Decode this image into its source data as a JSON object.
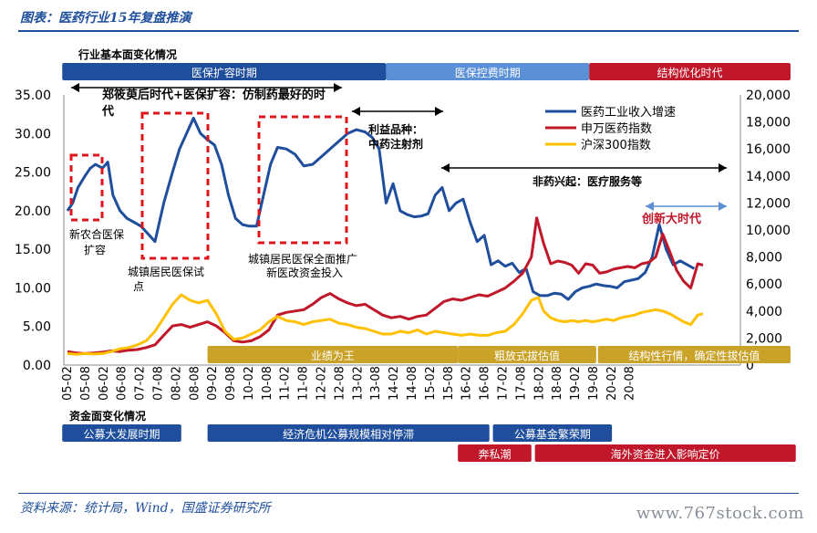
{
  "header": {
    "title": "图表：医药行业15年复盘推演"
  },
  "footer": {
    "source": "资料来源：统计局，Wind，国盛证券研究所",
    "watermark": "www.767stock.com"
  },
  "colors": {
    "blue": "#1f4e9c",
    "red": "#c0182a",
    "yellow": "#ffc000",
    "gold": "#c9a227",
    "lightblue": "#5b8fd6",
    "darkred": "#c0182a"
  },
  "chart_data": {
    "type": "line",
    "x": [
      "05-02",
      "05-08",
      "06-02",
      "06-08",
      "07-02",
      "07-08",
      "08-02",
      "08-08",
      "09-02",
      "09-08",
      "10-02",
      "10-08",
      "11-02",
      "11-08",
      "12-02",
      "12-08",
      "13-02",
      "13-08",
      "14-02",
      "14-08",
      "15-02",
      "15-08",
      "16-02",
      "16-08",
      "17-02",
      "17-08",
      "18-02",
      "18-08",
      "19-02",
      "19-08",
      "20-02",
      "20-08"
    ],
    "ylim": [
      0,
      35
    ],
    "yticks": [
      "35.00",
      "30.00",
      "25.00",
      "20.00",
      "15.00",
      "10.00",
      "5.00",
      "0.00"
    ],
    "y2lim": [
      0,
      20000
    ],
    "y2ticks": [
      "20,000",
      "18,000",
      "16,000",
      "14,000",
      "12,000",
      "10,000",
      "8,000",
      "6,000",
      "4,000",
      "2,000",
      "0"
    ],
    "series": [
      {
        "name": "医药工业收入增速",
        "axis": "left",
        "color": "#1f4e9c",
        "points": [
          [
            0,
            20
          ],
          [
            0.3,
            21
          ],
          [
            0.6,
            23
          ],
          [
            1,
            24.5
          ],
          [
            1.3,
            25.5
          ],
          [
            1.6,
            26
          ],
          [
            2,
            25.5
          ],
          [
            2.3,
            26.3
          ],
          [
            2.6,
            22
          ],
          [
            3,
            20
          ],
          [
            3.4,
            19
          ],
          [
            3.8,
            18.5
          ],
          [
            4.2,
            18
          ],
          [
            4.6,
            17
          ],
          [
            5,
            16
          ],
          [
            5.5,
            21
          ],
          [
            6,
            25
          ],
          [
            6.4,
            28
          ],
          [
            6.8,
            30
          ],
          [
            7.2,
            32
          ],
          [
            7.6,
            30
          ],
          [
            8,
            29.2
          ],
          [
            8.4,
            28.5
          ],
          [
            8.8,
            26
          ],
          [
            9.2,
            22
          ],
          [
            9.6,
            19
          ],
          [
            10,
            18.2
          ],
          [
            10.4,
            18
          ],
          [
            10.8,
            18
          ],
          [
            11.2,
            22
          ],
          [
            11.6,
            26
          ],
          [
            12,
            28.2
          ],
          [
            12.5,
            28
          ],
          [
            13,
            27.3
          ],
          [
            13.5,
            25.8
          ],
          [
            14,
            26
          ],
          [
            14.5,
            27
          ],
          [
            15,
            28
          ],
          [
            15.5,
            29
          ],
          [
            16,
            30
          ],
          [
            16.5,
            30.5
          ],
          [
            17,
            30.2
          ],
          [
            17.4,
            29.5
          ],
          [
            17.8,
            28
          ],
          [
            18.2,
            21
          ],
          [
            18.6,
            23.5
          ],
          [
            19,
            20
          ],
          [
            19.4,
            19.5
          ],
          [
            19.8,
            19.2
          ],
          [
            20.2,
            19.3
          ],
          [
            20.6,
            19.6
          ],
          [
            21,
            22
          ],
          [
            21.4,
            23
          ],
          [
            21.8,
            20
          ],
          [
            22.2,
            21
          ],
          [
            22.6,
            21.5
          ],
          [
            23,
            18.5
          ],
          [
            23.4,
            16
          ],
          [
            23.8,
            16.8
          ],
          [
            24.2,
            13
          ],
          [
            24.6,
            13.5
          ],
          [
            25,
            12.8
          ],
          [
            25.4,
            13.2
          ],
          [
            25.8,
            12
          ],
          [
            26.2,
            12.5
          ],
          [
            26.6,
            9.5
          ],
          [
            27,
            9
          ],
          [
            27.4,
            9
          ],
          [
            27.8,
            9.3
          ],
          [
            28.2,
            9.2
          ],
          [
            28.6,
            8.5
          ],
          [
            29,
            9.5
          ],
          [
            29.4,
            10
          ],
          [
            29.8,
            10.2
          ],
          [
            30.2,
            10.5
          ],
          [
            30.6,
            10.3
          ],
          [
            31,
            10.2
          ],
          [
            31.4,
            10
          ],
          [
            31.8,
            10.8
          ],
          [
            32.2,
            11
          ],
          [
            32.6,
            11.2
          ],
          [
            33,
            12
          ],
          [
            33.4,
            14
          ],
          [
            33.8,
            18.2
          ],
          [
            34.2,
            15
          ],
          [
            34.6,
            13
          ],
          [
            35,
            13.5
          ],
          [
            35.4,
            13
          ],
          [
            35.8,
            12.5
          ]
        ]
      },
      {
        "name": "申万医药指数",
        "axis": "right",
        "color": "#c0182a",
        "points": [
          [
            0,
            1000
          ],
          [
            0.5,
            900
          ],
          [
            1,
            850
          ],
          [
            1.5,
            900
          ],
          [
            2,
            950
          ],
          [
            2.5,
            1050
          ],
          [
            3,
            1000
          ],
          [
            3.5,
            1100
          ],
          [
            4,
            1150
          ],
          [
            4.5,
            1300
          ],
          [
            5,
            1500
          ],
          [
            5.5,
            2200
          ],
          [
            6,
            2900
          ],
          [
            6.5,
            3000
          ],
          [
            7,
            2800
          ],
          [
            7.5,
            3000
          ],
          [
            8,
            3200
          ],
          [
            8.5,
            2900
          ],
          [
            9,
            2400
          ],
          [
            9.5,
            1800
          ],
          [
            10,
            1700
          ],
          [
            10.5,
            1800
          ],
          [
            11,
            2100
          ],
          [
            11.5,
            2600
          ],
          [
            12,
            3700
          ],
          [
            12.5,
            3900
          ],
          [
            13,
            4000
          ],
          [
            13.5,
            4100
          ],
          [
            14,
            4500
          ],
          [
            14.5,
            5000
          ],
          [
            15,
            5300
          ],
          [
            15.5,
            4900
          ],
          [
            16,
            4600
          ],
          [
            16.5,
            4400
          ],
          [
            17,
            4500
          ],
          [
            17.5,
            4100
          ],
          [
            18,
            3700
          ],
          [
            18.5,
            3500
          ],
          [
            19,
            3600
          ],
          [
            19.5,
            3400
          ],
          [
            20,
            3600
          ],
          [
            20.5,
            3700
          ],
          [
            21,
            4200
          ],
          [
            21.5,
            4700
          ],
          [
            22,
            4900
          ],
          [
            22.5,
            4800
          ],
          [
            23,
            5000
          ],
          [
            23.5,
            5200
          ],
          [
            24,
            5100
          ],
          [
            24.5,
            5400
          ],
          [
            25,
            5700
          ],
          [
            25.5,
            6200
          ],
          [
            26,
            6800
          ],
          [
            26.5,
            8000
          ],
          [
            26.8,
            10900
          ],
          [
            27.2,
            9000
          ],
          [
            27.6,
            7500
          ],
          [
            28,
            7700
          ],
          [
            28.4,
            7600
          ],
          [
            28.8,
            7400
          ],
          [
            29.2,
            6800
          ],
          [
            29.6,
            7500
          ],
          [
            30,
            7400
          ],
          [
            30.4,
            6800
          ],
          [
            30.8,
            6900
          ],
          [
            31.2,
            7100
          ],
          [
            31.6,
            7200
          ],
          [
            32,
            7300
          ],
          [
            32.4,
            7200
          ],
          [
            32.8,
            7500
          ],
          [
            33.2,
            7600
          ],
          [
            33.6,
            8000
          ],
          [
            34,
            9700
          ],
          [
            34.4,
            8400
          ],
          [
            34.8,
            7000
          ],
          [
            35.2,
            6200
          ],
          [
            35.6,
            5700
          ],
          [
            36,
            7500
          ],
          [
            36.3,
            7400
          ]
        ]
      },
      {
        "name": "沪深300指数",
        "axis": "right",
        "color": "#ffc000",
        "points": [
          [
            0,
            850
          ],
          [
            0.5,
            800
          ],
          [
            1,
            850
          ],
          [
            1.5,
            820
          ],
          [
            2,
            850
          ],
          [
            2.5,
            1000
          ],
          [
            3,
            1200
          ],
          [
            3.5,
            1300
          ],
          [
            4,
            1500
          ],
          [
            4.5,
            1800
          ],
          [
            5,
            2500
          ],
          [
            5.5,
            3500
          ],
          [
            6,
            4500
          ],
          [
            6.5,
            5200
          ],
          [
            7,
            4800
          ],
          [
            7.5,
            4600
          ],
          [
            8,
            4800
          ],
          [
            8.5,
            3800
          ],
          [
            9,
            2500
          ],
          [
            9.5,
            1900
          ],
          [
            10,
            2000
          ],
          [
            10.5,
            2300
          ],
          [
            11,
            2600
          ],
          [
            11.5,
            3200
          ],
          [
            12,
            3600
          ],
          [
            12.5,
            3300
          ],
          [
            13,
            3200
          ],
          [
            13.5,
            3000
          ],
          [
            14,
            3200
          ],
          [
            14.5,
            3300
          ],
          [
            15,
            3400
          ],
          [
            15.5,
            3100
          ],
          [
            16,
            3000
          ],
          [
            16.5,
            2800
          ],
          [
            17,
            2700
          ],
          [
            17.5,
            2500
          ],
          [
            18,
            2300
          ],
          [
            18.5,
            2300
          ],
          [
            19,
            2500
          ],
          [
            19.5,
            2400
          ],
          [
            20,
            2600
          ],
          [
            20.5,
            2300
          ],
          [
            21,
            2500
          ],
          [
            21.5,
            2400
          ],
          [
            22,
            2300
          ],
          [
            22.5,
            2200
          ],
          [
            23,
            2300
          ],
          [
            23.5,
            2200
          ],
          [
            24,
            2200
          ],
          [
            24.5,
            2400
          ],
          [
            25,
            2500
          ],
          [
            25.5,
            3000
          ],
          [
            26,
            3800
          ],
          [
            26.5,
            4800
          ],
          [
            26.9,
            5000
          ],
          [
            27.2,
            4000
          ],
          [
            27.6,
            3500
          ],
          [
            28,
            3300
          ],
          [
            28.4,
            3200
          ],
          [
            28.8,
            3300
          ],
          [
            29.2,
            3200
          ],
          [
            29.6,
            3300
          ],
          [
            30,
            3200
          ],
          [
            30.4,
            3300
          ],
          [
            30.8,
            3400
          ],
          [
            31.2,
            3300
          ],
          [
            31.6,
            3500
          ],
          [
            32,
            3600
          ],
          [
            32.4,
            3700
          ],
          [
            32.8,
            3900
          ],
          [
            33.2,
            4000
          ],
          [
            33.6,
            4100
          ],
          [
            34,
            4000
          ],
          [
            34.4,
            3800
          ],
          [
            34.8,
            3500
          ],
          [
            35.2,
            3200
          ],
          [
            35.6,
            3000
          ],
          [
            36,
            3700
          ],
          [
            36.3,
            3800
          ]
        ]
      }
    ],
    "legend": {
      "position": "top-right"
    },
    "section_labels": {
      "industry": "行业基本面变化情况",
      "capital": "资金面变化情况"
    },
    "top_bands": [
      {
        "label": "医保扩容时期",
        "color": "#1f4e9c",
        "from": -0.3,
        "to": 18.2
      },
      {
        "label": "医保控费时期",
        "color": "#5b8fd6",
        "from": 18.2,
        "to": 29.8
      },
      {
        "label": "结构优化时代",
        "color": "#c0182a",
        "from": 29.8,
        "to": 41.3
      }
    ],
    "mid_bands": [
      {
        "label": "业绩为王",
        "color": "#c9a227",
        "from": 8,
        "to": 22.3
      },
      {
        "label": "粗放式拔估值",
        "color": "#c9a227",
        "from": 22.3,
        "to": 30.2
      },
      {
        "label": "结构性行情，确定性拔估值",
        "color": "#c9a227",
        "from": 30.3,
        "to": 41.3
      }
    ],
    "bottom_bands": [
      {
        "label": "公募大发展时期",
        "color": "#1f4e9c",
        "from": -0.3,
        "to": 6.5
      },
      {
        "label": "经济危机公募规模相对停滞",
        "color": "#1f4e9c",
        "from": 8,
        "to": 24.1
      },
      {
        "label": "公募基金繁荣期",
        "color": "#1f4e9c",
        "from": 24.3,
        "to": 31.1
      },
      {
        "label": "奔私潮",
        "color": "#c0182a",
        "from": 22.3,
        "to": 26.5
      },
      {
        "label": "海外资金进入影响定价",
        "color": "#c0182a",
        "from": 26.7,
        "to": 41.6
      }
    ],
    "annotations": [
      {
        "text": "郑筱萸后时代+医保扩容：仿制药最好的时",
        "color": "#000"
      },
      {
        "text": "代",
        "color": "#000"
      },
      {
        "text": "利益品种：",
        "color": "#000"
      },
      {
        "text": "中药注射剂",
        "color": "#000"
      },
      {
        "text": "非药兴起：医疗服务等",
        "color": "#000"
      },
      {
        "text": "创新大时代",
        "color": "#c0182a"
      },
      {
        "text": "新农合医保",
        "color": "#000"
      },
      {
        "text": "扩容",
        "color": "#000"
      },
      {
        "text": "城镇居民医保试",
        "color": "#000"
      },
      {
        "text": "点",
        "color": "#000"
      },
      {
        "text": "城镇居民医保全面推广",
        "color": "#000"
      },
      {
        "text": "新医改资金投入",
        "color": "#000"
      }
    ]
  }
}
